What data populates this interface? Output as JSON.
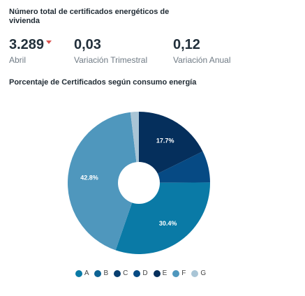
{
  "header": {
    "total_title": "Número total de certificados energéticos de vivienda",
    "pie_title": "Porcentaje de Certificados según consumo energía"
  },
  "kpis": [
    {
      "value": "3.289",
      "label": "Abril",
      "trend": "down"
    },
    {
      "value": "0,03",
      "label": "Variación Trimestral"
    },
    {
      "value": "0,12",
      "label": "Variación Anual"
    }
  ],
  "chart_data": {
    "type": "pie",
    "donut": true,
    "title": "Porcentaje de Certificados según consumo energía",
    "legend_position": "bottom",
    "categories": [
      "A",
      "B",
      "C",
      "D",
      "E",
      "F",
      "G"
    ],
    "values": [
      30.4,
      0,
      0,
      7.2,
      17.7,
      42.8,
      1.9
    ],
    "labels": {
      "A": "30.4%",
      "E": "17.7%",
      "F": "42.8%"
    },
    "colors": [
      "#0a7aa6",
      "#0d6394",
      "#083f70",
      "#064a84",
      "#052f5c",
      "#4f97bd",
      "#a9c5d6"
    ]
  }
}
